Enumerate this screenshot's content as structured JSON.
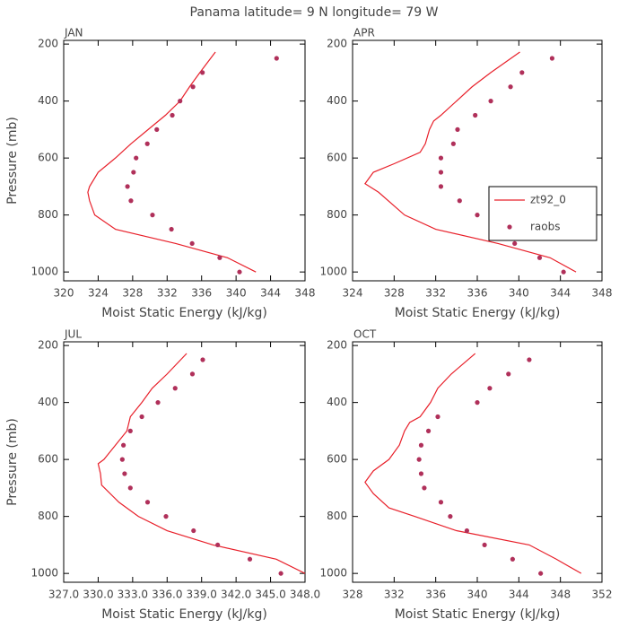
{
  "title": "Panama  latitude= 9 N longitude= 79 W",
  "chart_data": [
    {
      "type": "line",
      "title": "JAN",
      "xlabel": "Moist Static Energy (kJ/kg)",
      "ylabel": "Pressure (mb)",
      "xlim": [
        320,
        348
      ],
      "xticks": [
        320,
        324,
        328,
        332,
        336,
        340,
        344,
        348
      ],
      "ylim": [
        187,
        1031
      ],
      "yinvert": true,
      "yticks": [
        200,
        400,
        600,
        800,
        1000
      ],
      "series": [
        {
          "color": "#e8202a",
          "style": "line",
          "x": [
            337.6,
            335.8,
            334.6,
            333.5,
            331.8,
            329.8,
            327.8,
            326.0,
            324.0,
            323.0,
            322.8,
            323.0,
            323.6,
            326.0,
            333.0,
            339.0,
            342.3
          ],
          "y": [
            228,
            300,
            350,
            400,
            450,
            500,
            550,
            600,
            650,
            700,
            720,
            750,
            800,
            850,
            900,
            950,
            1000
          ]
        },
        {
          "color": "#b0305a",
          "style": "markers",
          "x": [
            344.7,
            336.1,
            335.0,
            333.5,
            332.6,
            330.8,
            329.7,
            328.4,
            328.1,
            327.4,
            327.8,
            330.3,
            332.5,
            334.9,
            338.1,
            340.4
          ],
          "y": [
            250,
            300,
            350,
            400,
            450,
            500,
            550,
            600,
            650,
            700,
            750,
            800,
            850,
            900,
            950,
            1000
          ]
        }
      ]
    },
    {
      "type": "line",
      "title": "APR",
      "xlabel": "Moist Static Energy (kJ/kg)",
      "legend": "right",
      "xlim": [
        324,
        348
      ],
      "xticks": [
        324,
        328,
        332,
        336,
        340,
        344,
        348
      ],
      "ylim": [
        187,
        1031
      ],
      "yinvert": true,
      "yticks": [
        200,
        400,
        600,
        800,
        1000
      ],
      "series": [
        {
          "name": "zt92_0",
          "color": "#e8202a",
          "style": "line",
          "x": [
            340.1,
            337.3,
            335.5,
            334.0,
            332.5,
            331.8,
            331.4,
            331.0,
            330.5,
            328.0,
            326.0,
            325.2,
            326.5,
            329.0,
            332.0,
            338.0,
            343.0,
            345.5
          ],
          "y": [
            228,
            300,
            350,
            400,
            450,
            470,
            500,
            550,
            580,
            620,
            650,
            690,
            720,
            800,
            850,
            900,
            950,
            1000
          ]
        },
        {
          "name": "raobs",
          "color": "#b0305a",
          "style": "markers",
          "x": [
            343.2,
            340.3,
            339.2,
            337.3,
            335.8,
            334.1,
            333.7,
            332.5,
            332.5,
            332.5,
            334.3,
            336.0,
            337.3,
            339.6,
            342.0,
            344.3
          ],
          "y": [
            250,
            300,
            350,
            400,
            450,
            500,
            550,
            600,
            650,
            700,
            750,
            800,
            850,
            900,
            950,
            1000
          ]
        }
      ]
    },
    {
      "type": "line",
      "title": "JUL",
      "xlabel": "Moist Static Energy (kJ/kg)",
      "ylabel": "Pressure (mb)",
      "xlim": [
        327,
        348
      ],
      "xticks": [
        {
          "value": 327,
          "label": "327.0"
        },
        {
          "value": 330,
          "label": "330.0"
        },
        {
          "value": 333,
          "label": "333.0"
        },
        {
          "value": 336,
          "label": "336.0"
        },
        {
          "value": 339,
          "label": "339.0"
        },
        {
          "value": 342,
          "label": "342.0"
        },
        {
          "value": 345,
          "label": "345.0"
        },
        {
          "value": 348,
          "label": "348.0"
        }
      ],
      "ylim": [
        187,
        1031
      ],
      "yinvert": true,
      "yticks": [
        200,
        400,
        600,
        800,
        1000
      ],
      "series": [
        {
          "color": "#e8202a",
          "style": "line",
          "x": [
            337.7,
            336.0,
            334.7,
            333.8,
            332.8,
            332.5,
            331.5,
            330.5,
            330.0,
            330.2,
            330.3,
            331.8,
            333.5,
            336.0,
            340.0,
            345.5,
            348.0
          ],
          "y": [
            228,
            300,
            350,
            400,
            450,
            500,
            550,
            600,
            615,
            650,
            690,
            750,
            800,
            850,
            900,
            950,
            1000
          ]
        },
        {
          "color": "#b0305a",
          "style": "markers",
          "x": [
            339.1,
            338.2,
            336.7,
            335.2,
            333.8,
            332.8,
            332.2,
            332.1,
            332.3,
            332.8,
            334.3,
            335.9,
            338.3,
            340.4,
            343.2,
            345.9
          ],
          "y": [
            250,
            300,
            350,
            400,
            450,
            500,
            550,
            600,
            650,
            700,
            750,
            800,
            850,
            900,
            950,
            1000
          ]
        }
      ]
    },
    {
      "type": "line",
      "title": "OCT",
      "xlabel": "Moist Static Energy (kJ/kg)",
      "xlim": [
        328,
        352
      ],
      "xticks": [
        328,
        332,
        336,
        340,
        344,
        348,
        352
      ],
      "ylim": [
        187,
        1031
      ],
      "yinvert": true,
      "yticks": [
        200,
        400,
        600,
        800,
        1000
      ],
      "series": [
        {
          "color": "#e8202a",
          "style": "line",
          "x": [
            339.8,
            337.5,
            336.2,
            335.5,
            334.5,
            333.5,
            333.0,
            332.5,
            331.5,
            330.0,
            329.2,
            330.0,
            331.5,
            334.0,
            338.0,
            345.0,
            347.6,
            350.0
          ],
          "y": [
            228,
            300,
            350,
            400,
            450,
            470,
            500,
            550,
            600,
            640,
            680,
            720,
            770,
            800,
            850,
            900,
            950,
            1000
          ]
        },
        {
          "color": "#b0305a",
          "style": "markers",
          "x": [
            345.0,
            343.0,
            341.2,
            340.0,
            336.2,
            335.3,
            334.6,
            334.4,
            334.6,
            334.9,
            336.5,
            337.4,
            339.0,
            340.7,
            343.4,
            346.1
          ],
          "y": [
            250,
            300,
            350,
            400,
            450,
            500,
            550,
            600,
            650,
            700,
            750,
            800,
            850,
            900,
            950,
            1000
          ]
        }
      ]
    }
  ]
}
